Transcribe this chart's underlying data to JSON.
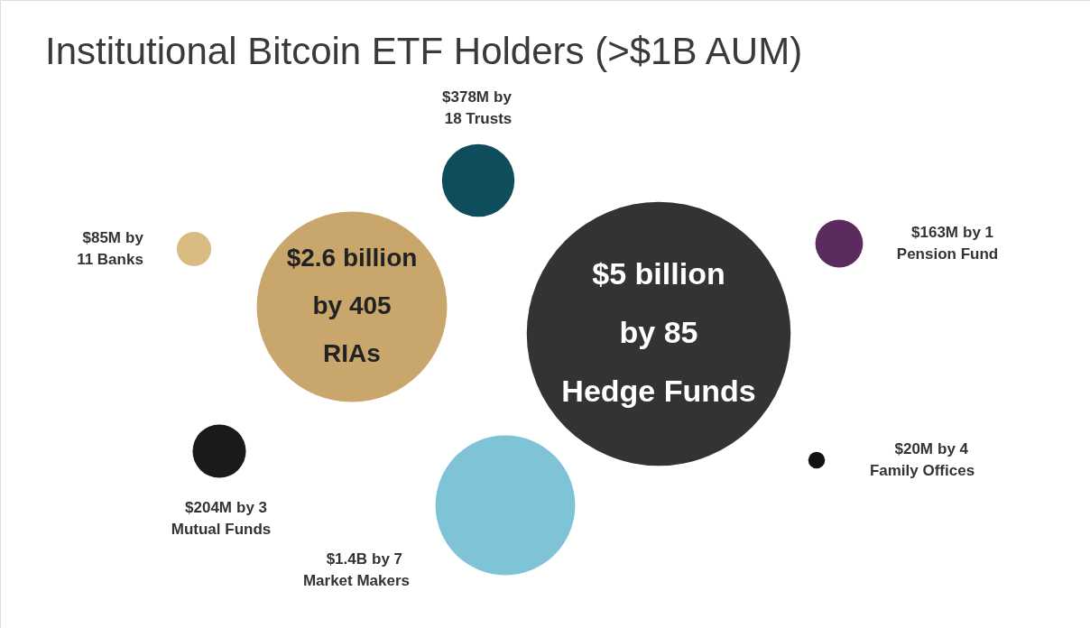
{
  "chart_data": {
    "type": "other",
    "title": "Institutional Bitcoin ETF Holders (>$1B AUM)",
    "categories": [
      "by 85\nHedge Funds",
      "by 405\nRIAs",
      "by\n18 Trusts",
      "by 1\nPension Fund",
      "by\n11 Banks",
      "by 3\nMutual Funds",
      "by 7\nMarket Makers",
      "by 4\nFamily Offices"
    ],
    "values": [
      5000000000,
      2600000000,
      378000000,
      163000000,
      85000000,
      204000000,
      1400000000,
      20000000
    ],
    "value_labels": [
      "$5 billion",
      "$2.6 billion",
      "$378M",
      "$163M",
      "$85M",
      "$204M",
      "$1.4B",
      "$20M"
    ],
    "colors": [
      "#333333",
      "#c9a66b",
      "#0f4c5c",
      "#5b2a5e",
      "#d9bc82",
      "#1a1a1a",
      "#7fc3d6",
      "#111111"
    ]
  }
}
